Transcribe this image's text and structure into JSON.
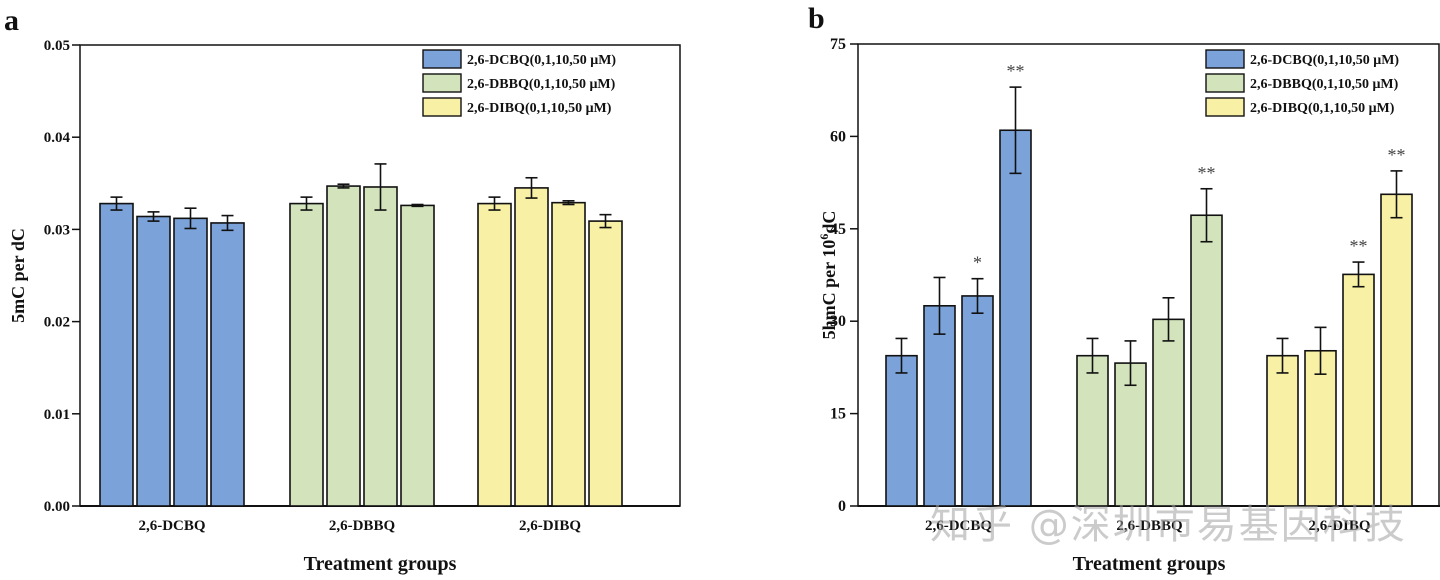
{
  "panels": [
    {
      "letter": "a"
    },
    {
      "letter": "b"
    }
  ],
  "watermark": "知乎 @深圳市易基因科技",
  "chart_data": [
    {
      "type": "bar",
      "panel": "a",
      "title": "",
      "xlabel": "Treatment groups",
      "ylabel": "5mC per dC",
      "ylim": [
        0,
        0.05
      ],
      "yticks": [
        "0.00",
        "0.01",
        "0.02",
        "0.03",
        "0.04",
        "0.05"
      ],
      "ytick_values": [
        0,
        0.01,
        0.02,
        0.03,
        0.04,
        0.05
      ],
      "grid": false,
      "legend_position": "top-right",
      "categories": [
        "2,6-DCBQ",
        "2,6-DBBQ",
        "2,6-DIBQ"
      ],
      "concentrations": [
        "0",
        "1",
        "10",
        "50"
      ],
      "series": [
        {
          "name": "2,6-DCBQ(0,1,10,50 μM)",
          "color": "#7ba3da",
          "values": [
            0.0328,
            0.0314,
            0.0312,
            0.0307
          ],
          "errors": [
            0.0007,
            0.0005,
            0.0011,
            0.0008
          ],
          "sig": [
            "",
            "",
            "",
            ""
          ]
        },
        {
          "name": "2,6-DBBQ(0,1,10,50 μM)",
          "color": "#d3e4bd",
          "values": [
            0.0328,
            0.0347,
            0.0346,
            0.0326
          ],
          "errors": [
            0.0007,
            0.0002,
            0.0025,
            0.0001
          ],
          "sig": [
            "",
            "",
            "",
            ""
          ]
        },
        {
          "name": "2,6-DIBQ(0,1,10,50 μM)",
          "color": "#f8f0a4",
          "values": [
            0.0328,
            0.0345,
            0.0329,
            0.0309
          ],
          "errors": [
            0.0007,
            0.0011,
            0.0002,
            0.0007
          ],
          "sig": [
            "",
            "",
            "",
            ""
          ]
        }
      ]
    },
    {
      "type": "bar",
      "panel": "b",
      "title": "",
      "xlabel": "Treatment groups",
      "ylabel": "5hmC per 10⁶dC",
      "ylabel_parts": [
        "5hmC per 10",
        "6",
        "dC"
      ],
      "ylim": [
        0,
        75
      ],
      "yticks": [
        "0",
        "15",
        "30",
        "45",
        "60",
        "75"
      ],
      "ytick_values": [
        0,
        15,
        30,
        45,
        60,
        75
      ],
      "grid": false,
      "legend_position": "top-right",
      "categories": [
        "2,6-DCBQ",
        "2,6-DBBQ",
        "2,6-DIBQ"
      ],
      "concentrations": [
        "0",
        "1",
        "10",
        "50"
      ],
      "series": [
        {
          "name": "2,6-DCBQ(0,1,10,50 μM)",
          "color": "#7ba3da",
          "values": [
            24.4,
            32.5,
            34.1,
            61.0
          ],
          "errors": [
            2.8,
            4.6,
            2.8,
            7.0
          ],
          "sig": [
            "",
            "",
            "*",
            "**"
          ]
        },
        {
          "name": "2,6-DBBQ(0,1,10,50 μM)",
          "color": "#d3e4bd",
          "values": [
            24.4,
            23.2,
            30.3,
            47.2
          ],
          "errors": [
            2.8,
            3.6,
            3.5,
            4.3
          ],
          "sig": [
            "",
            "",
            "",
            "**"
          ]
        },
        {
          "name": "2,6-DIBQ(0,1,10,50 μM)",
          "color": "#f8f0a4",
          "values": [
            24.4,
            25.2,
            37.6,
            50.6
          ],
          "errors": [
            2.8,
            3.8,
            2.0,
            3.8
          ],
          "sig": [
            "",
            "",
            "**",
            "**"
          ]
        }
      ]
    }
  ]
}
